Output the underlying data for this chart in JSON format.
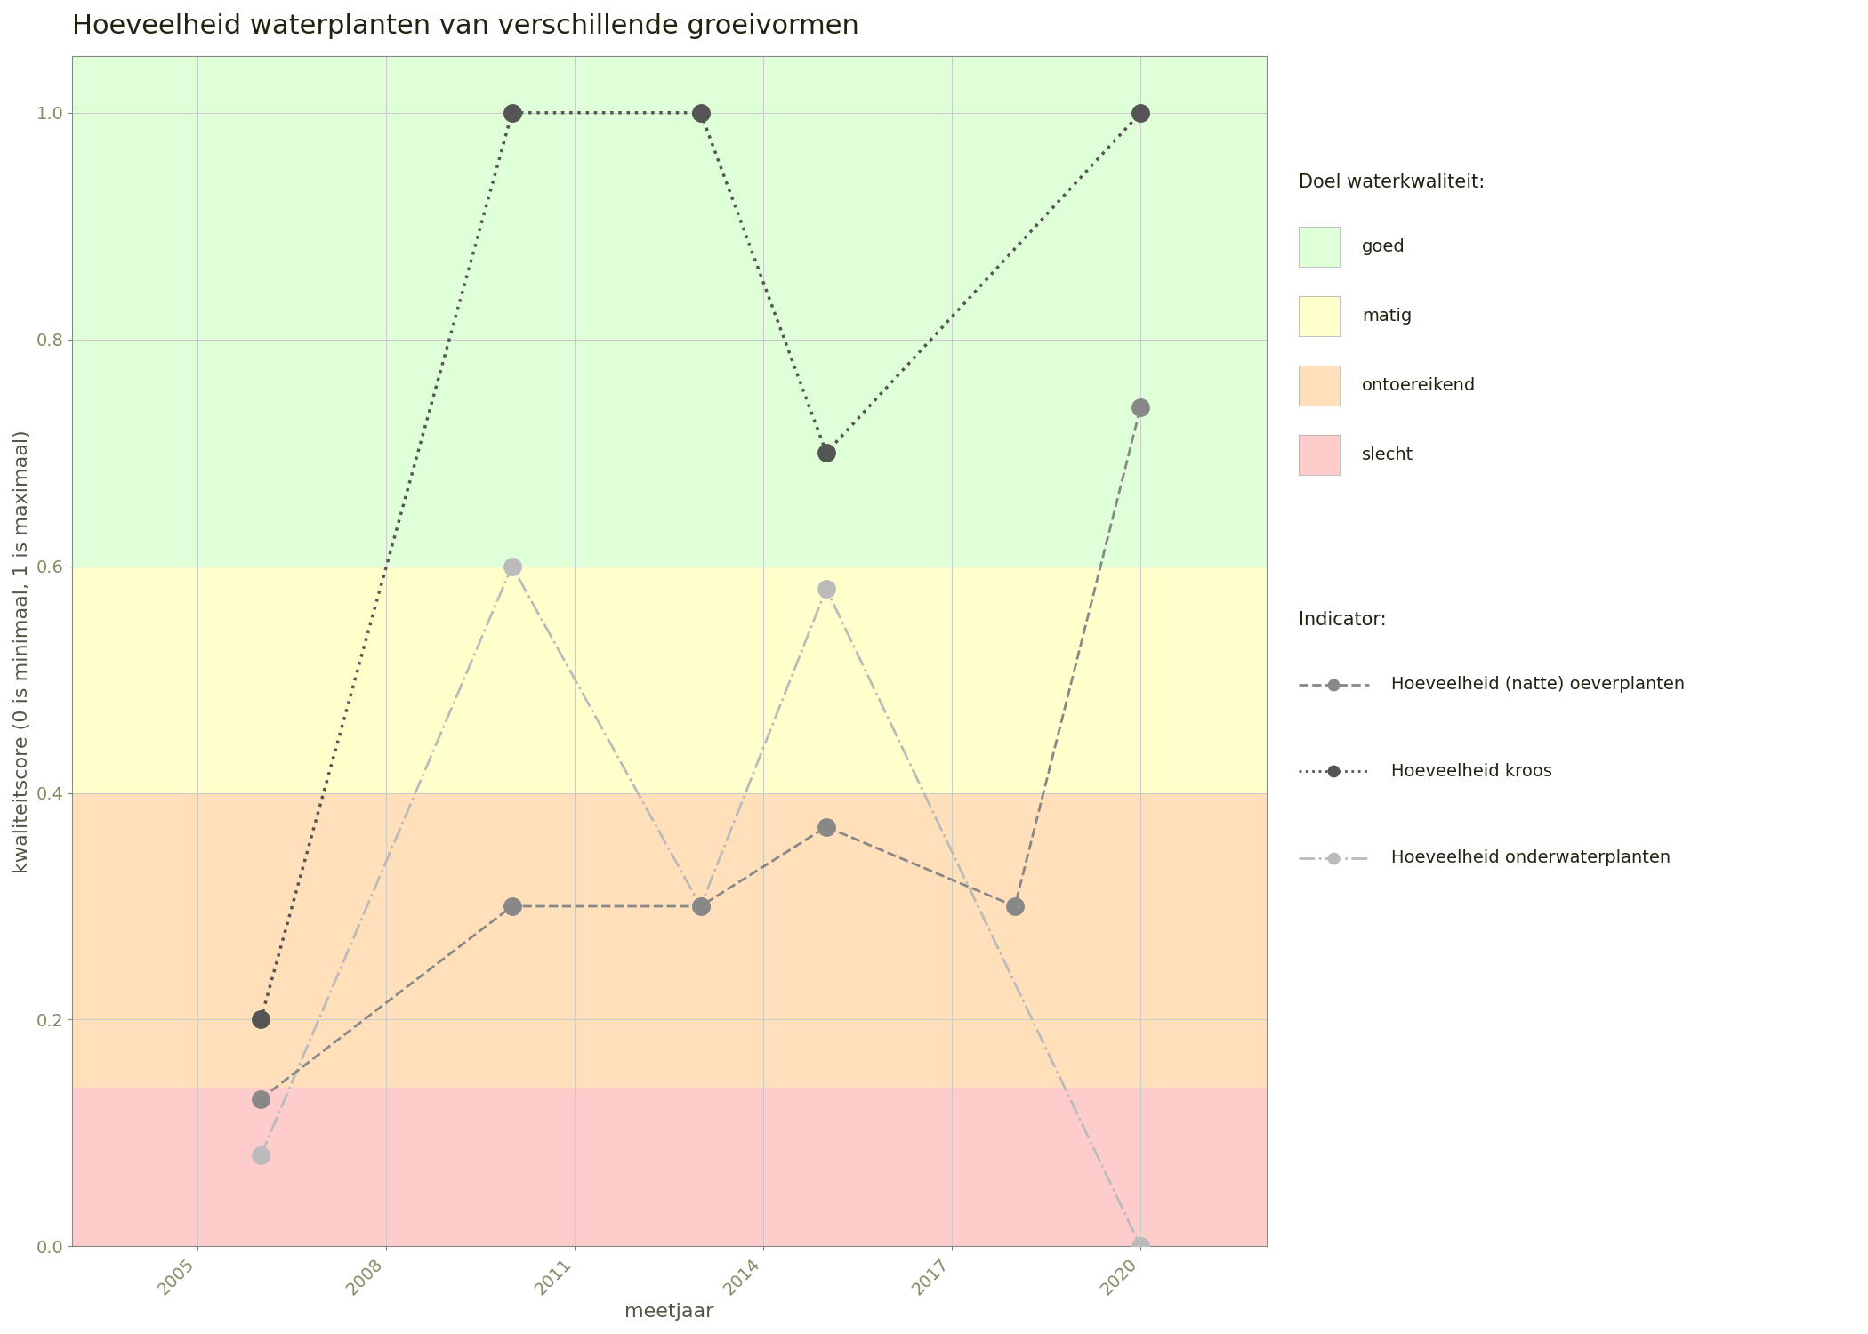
{
  "title": "Hoeveelheid waterplanten van verschillende groeivormen",
  "xlabel": "meetjaar",
  "ylabel": "kwaliteitscore (0 is minimaal, 1 is maximaal)",
  "xlim": [
    2003,
    2022
  ],
  "ylim": [
    0.0,
    1.05
  ],
  "xticks": [
    2005,
    2008,
    2011,
    2014,
    2017,
    2020
  ],
  "yticks": [
    0.0,
    0.2,
    0.4,
    0.6,
    0.8,
    1.0
  ],
  "bg_zones": [
    {
      "ymin": 0.0,
      "ymax": 0.14,
      "color": "#FFCCCC",
      "label": "slecht"
    },
    {
      "ymin": 0.14,
      "ymax": 0.4,
      "color": "#FFE0BB",
      "label": "ontoereikend"
    },
    {
      "ymin": 0.4,
      "ymax": 0.6,
      "color": "#FFFFCC",
      "label": "matig"
    },
    {
      "ymin": 0.6,
      "ymax": 1.05,
      "color": "#DFFFD8",
      "label": "goed"
    }
  ],
  "series": [
    {
      "key": "oeverplanten",
      "label": "Hoeveelheid (natte) oeverplanten",
      "x": [
        2006,
        2010,
        2013,
        2015,
        2018,
        2020
      ],
      "y": [
        0.13,
        0.3,
        0.3,
        0.37,
        0.3,
        0.74
      ],
      "color": "#888888",
      "linestyle": "--",
      "linewidth": 2.0,
      "markersize": 14,
      "zorder": 4
    },
    {
      "key": "kroos",
      "label": "Hoeveelheid kroos",
      "x": [
        2006,
        2010,
        2013,
        2015,
        2020
      ],
      "y": [
        0.2,
        1.0,
        1.0,
        0.7,
        1.0
      ],
      "color": "#555555",
      "linestyle": ":",
      "linewidth": 2.5,
      "markersize": 14,
      "zorder": 5
    },
    {
      "key": "onderwaterplanten",
      "label": "Hoeveelheid onderwaterplanten",
      "x": [
        2006,
        2010,
        2013,
        2015,
        2020
      ],
      "y": [
        0.08,
        0.6,
        0.3,
        0.58,
        0.0
      ],
      "color": "#BBBBBB",
      "linestyle": "-.",
      "linewidth": 2.0,
      "markersize": 14,
      "zorder": 3
    }
  ],
  "legend_quality_title": "Doel waterkwaliteit:",
  "legend_quality_items": [
    {
      "label": "goed",
      "color": "#DFFFD8"
    },
    {
      "label": "matig",
      "color": "#FFFFCC"
    },
    {
      "label": "ontoereikend",
      "color": "#FFE0BB"
    },
    {
      "label": "slecht",
      "color": "#FFCCCC"
    }
  ],
  "legend_indicator_title": "Indicator:",
  "background_color": "#FFFFFF",
  "grid_color": "#CCCCCC",
  "title_fontsize": 22,
  "label_fontsize": 16,
  "tick_fontsize": 14,
  "legend_fontsize": 14
}
